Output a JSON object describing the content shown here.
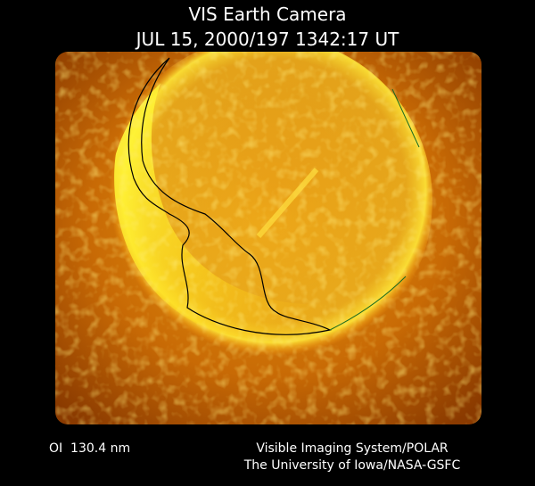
{
  "header": {
    "title": "VIS Earth Camera",
    "timestamp": "JUL 15, 2000/197 1342:17 UT"
  },
  "footer": {
    "wavelength": "OI  130.4 nm",
    "instrument": "Visible Imaging System/POLAR",
    "credit": "The University of Iowa/NASA-GSFC"
  }
}
